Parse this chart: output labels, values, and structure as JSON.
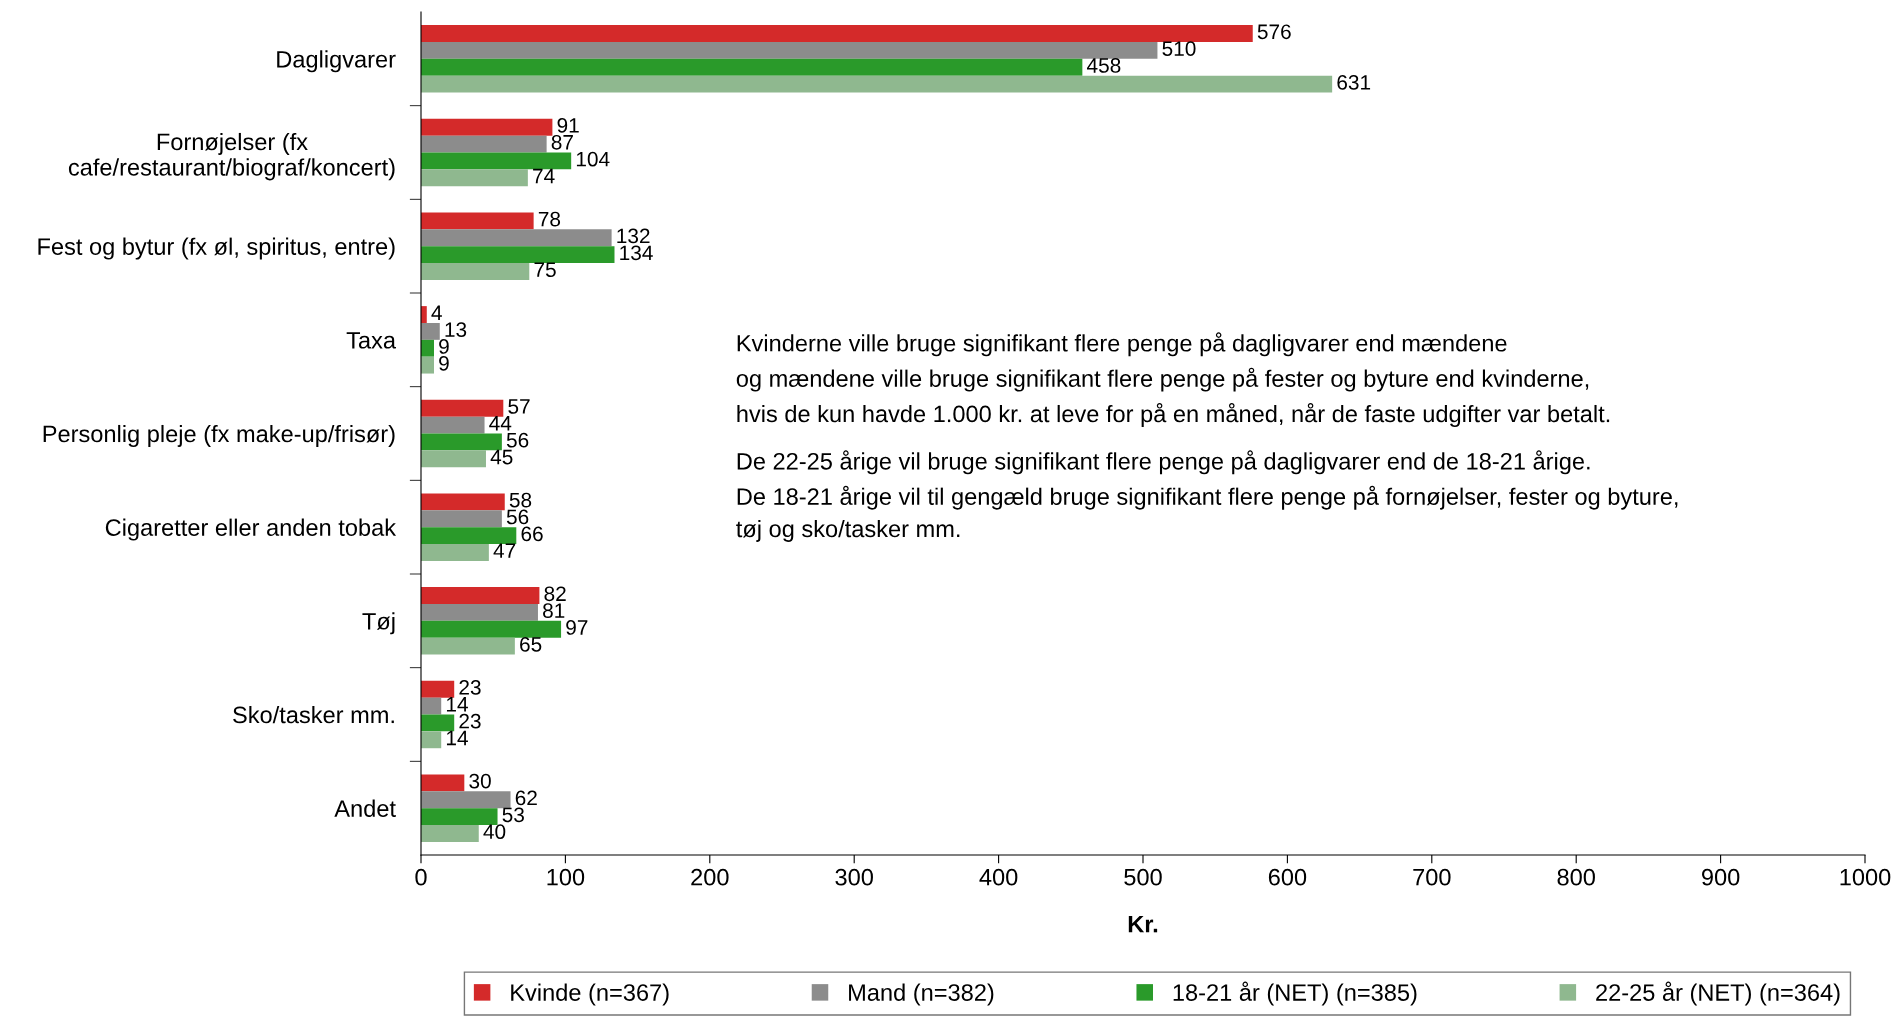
{
  "chart_data": {
    "type": "bar",
    "orientation": "horizontal",
    "xlabel": "Kr.",
    "categories": [
      "Dagligvarer",
      "Fornøjelser (fx\ncafe/restaurant/biograf/koncert)",
      "Fest og bytur (fx øl, spiritus, entre)",
      "Taxa",
      "Personlig pleje (fx make-up/frisør)",
      "Cigaretter eller anden tobak",
      "Tøj",
      "Sko/tasker mm.",
      "Andet"
    ],
    "series": [
      {
        "name": "Kvinde (n=367)",
        "color": "#d42a2a",
        "values": [
          576,
          91,
          78,
          4,
          57,
          58,
          82,
          23,
          30
        ]
      },
      {
        "name": "Mand (n=382)",
        "color": "#8c8c8c",
        "values": [
          510,
          87,
          132,
          13,
          44,
          56,
          81,
          14,
          62
        ]
      },
      {
        "name": "18-21 år (NET) (n=385)",
        "color": "#2a9a2a",
        "values": [
          458,
          104,
          134,
          9,
          56,
          66,
          97,
          23,
          53
        ]
      },
      {
        "name": "22-25 år (NET) (n=364)",
        "color": "#8fb88f",
        "values": [
          631,
          74,
          75,
          9,
          45,
          47,
          65,
          14,
          40
        ]
      }
    ],
    "xlim": [
      0,
      1000
    ],
    "xticks": [
      0,
      100,
      200,
      300,
      400,
      500,
      600,
      700,
      800,
      900,
      1000
    ],
    "data_labels": true,
    "grid": false,
    "legend": "bottom",
    "annotations": [
      "Kvinderne ville bruge signifikant flere penge på dagligvarer end mændene\nog mændene ville bruge signifikant flere penge på fester og byture end kvinderne,\nhvis de kun havde 1.000 kr. at leve for på en måned, når de faste udgifter var betalt.",
      "De 22-25 årige vil bruge signifikant flere penge på dagligvarer end de 18-21 årige.\nDe 18-21 årige vil til gengæld bruge signifikant flere penge på fornøjelser, fester og byture,\ntøj og sko/tasker mm."
    ]
  }
}
